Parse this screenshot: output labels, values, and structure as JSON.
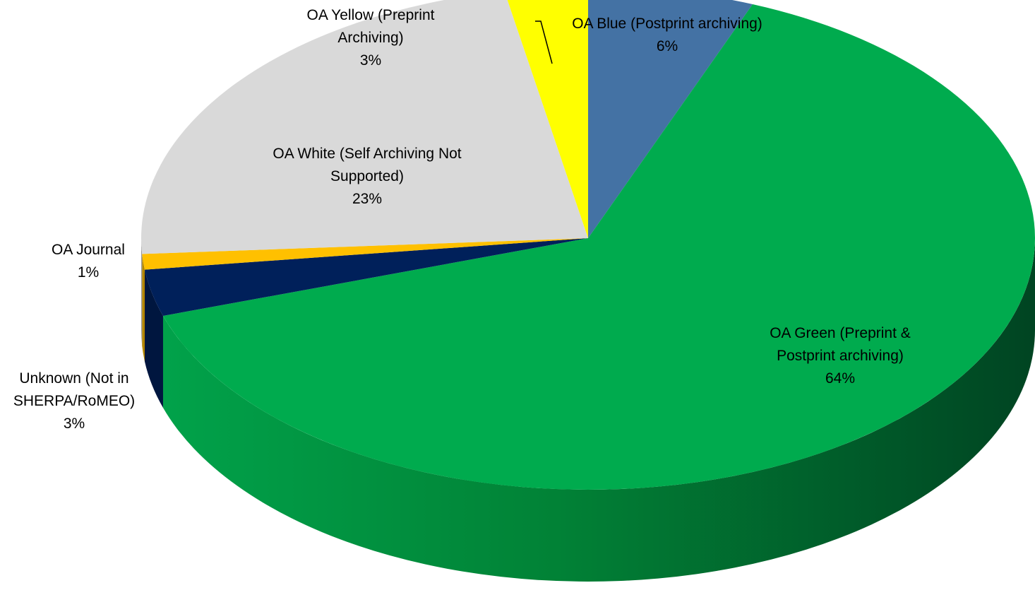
{
  "chart_data": {
    "type": "pie",
    "style": "3d",
    "legend": "none",
    "slices": [
      {
        "label": "OA Blue (Postprint archiving)",
        "label_lines": [
          "OA Blue (Postprint archiving)"
        ],
        "value": 6,
        "value_label": "6%",
        "color": "#4472A4"
      },
      {
        "label": "OA Green (Preprint & Postprint archiving)",
        "label_lines": [
          "OA Green (Preprint &",
          "Postprint archiving)"
        ],
        "value": 64,
        "value_label": "64%",
        "color": "#00AB4E"
      },
      {
        "label": "Unknown (Not in SHERPA/RoMEO)",
        "label_lines": [
          "Unknown (Not in",
          "SHERPA/RoMEO)"
        ],
        "value": 3,
        "value_label": "3%",
        "color": "#00205A"
      },
      {
        "label": "OA Journal",
        "label_lines": [
          "OA Journal"
        ],
        "value": 1,
        "value_label": "1%",
        "color": "#FFC000"
      },
      {
        "label": "OA White (Self Archiving Not Supported)",
        "label_lines": [
          "OA White (Self Archiving Not",
          "Supported)"
        ],
        "value": 23,
        "value_label": "23%",
        "color": "#D9D9D9"
      },
      {
        "label": "OA Yellow (Preprint Archiving)",
        "label_lines": [
          "OA Yellow (Preprint",
          "Archiving)"
        ],
        "value": 3,
        "value_label": "3%",
        "color": "#FFFF00"
      }
    ]
  }
}
